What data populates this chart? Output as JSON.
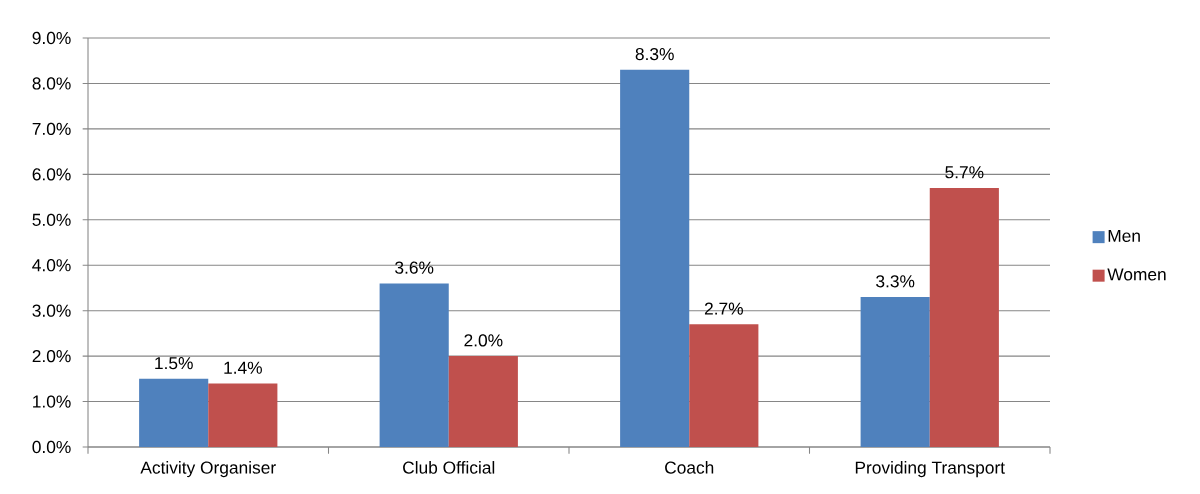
{
  "chart_data": {
    "type": "bar",
    "categories": [
      "Activity Organiser",
      "Club Official",
      "Coach",
      "Providing Transport"
    ],
    "series": [
      {
        "name": "Men",
        "color": "#4f81bd",
        "values": [
          1.5,
          3.6,
          8.3,
          3.3
        ],
        "value_labels": [
          "1.5%",
          "3.6%",
          "8.3%",
          "3.3%"
        ]
      },
      {
        "name": "Women",
        "color": "#c0504d",
        "values": [
          1.4,
          2.0,
          2.7,
          5.7
        ],
        "value_labels": [
          "1.4%",
          "2.0%",
          "2.7%",
          "5.7%"
        ]
      }
    ],
    "ylim": [
      0,
      9
    ],
    "yticks": [
      {
        "value": 0,
        "label": "0.0%"
      },
      {
        "value": 1,
        "label": "1.0%"
      },
      {
        "value": 2,
        "label": "2.0%"
      },
      {
        "value": 3,
        "label": "3.0%"
      },
      {
        "value": 4,
        "label": "4.0%"
      },
      {
        "value": 5,
        "label": "5.0%"
      },
      {
        "value": 6,
        "label": "6.0%"
      },
      {
        "value": 7,
        "label": "7.0%"
      },
      {
        "value": 8,
        "label": "8.0%"
      },
      {
        "value": 9,
        "label": "9.0%"
      }
    ],
    "grid": "y",
    "legend": "right"
  }
}
